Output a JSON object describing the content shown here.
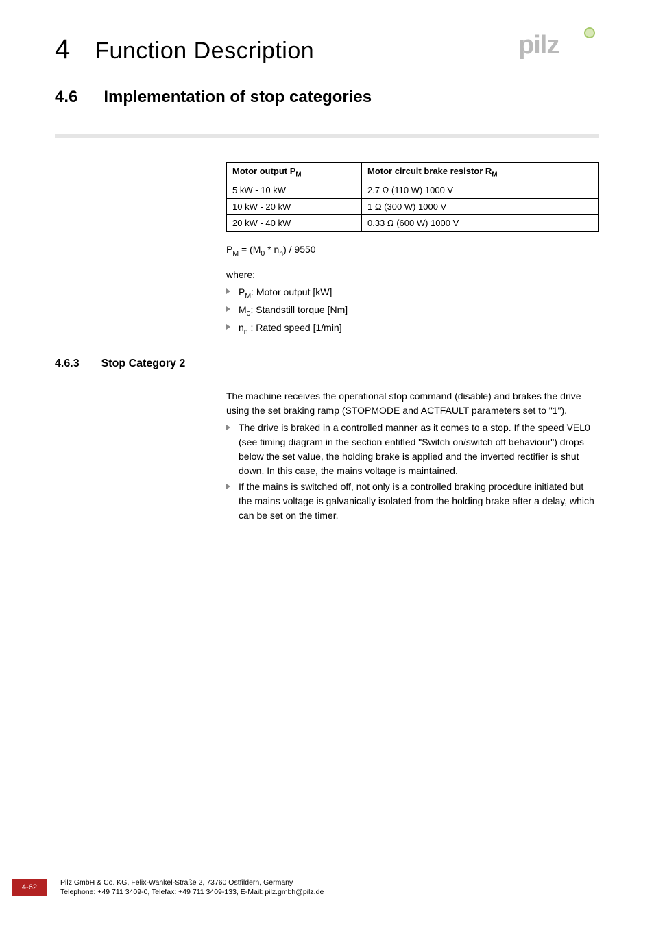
{
  "chapter": {
    "number": "4",
    "title": "Function Description"
  },
  "section": {
    "number": "4.6",
    "title": "Implementation of stop categories"
  },
  "logo": {
    "text": "pilz",
    "text_color": "#b9b9b9",
    "dot_fill": "#d9e8b8",
    "dot_stroke": "#a5c96a"
  },
  "table": {
    "columns": [
      {
        "header_html": "Motor output P<sub>M</sub>"
      },
      {
        "header_html": "Motor circuit brake resistor R<sub>M</sub>"
      }
    ],
    "rows": [
      [
        "5 kW - 10 kW",
        "2.7 Ω (110 W) 1000 V"
      ],
      [
        "10 kW - 20 kW",
        "1 Ω (300 W) 1000 V"
      ],
      [
        "20 kW - 40 kW",
        "0.33 Ω (600 W) 1000 V"
      ]
    ],
    "border_color": "#000000",
    "font_size": 13
  },
  "formula_html": "P<sub>M</sub> = (M<sub>0</sub> * n<sub>n</sub>) / 9550",
  "where_label": "where:",
  "where_items_html": [
    "P<sub>M</sub>: Motor output [kW]",
    "M<sub>0</sub>: Standstill torque [Nm]",
    "n<sub>n</sub> : Rated speed [1/min]"
  ],
  "subsection": {
    "number": "4.6.3",
    "title": "Stop Category 2"
  },
  "body_intro": "The machine receives the operational stop command (disable) and brakes the drive using the set braking ramp (STOPMODE and ACTFAULT parameters set to \"1\").",
  "body_bullets": [
    "The drive is braked in a controlled manner as it comes to a stop. If the speed VEL0 (see timing diagram in the section entitled \"Switch on/switch off behaviour\") drops below the set value, the holding brake is applied and the inverted rectifier is shut down. In this case, the mains voltage is maintained.",
    "If the mains is switched off, not only is a controlled braking procedure initiated but the mains voltage is galvanically isolated from the holding brake after a delay, which can be set on the timer."
  ],
  "footer": {
    "page": "4-62",
    "line1": "Pilz GmbH & Co. KG, Felix-Wankel-Straße 2, 73760 Ostfildern, Germany",
    "line2": "Telephone: +49 711 3409-0, Telefax: +49 711 3409-133, E-Mail: pilz.gmbh@pilz.de",
    "badge_bg": "#b22222",
    "badge_color": "#ffffff"
  },
  "colors": {
    "divider": "#e5e5e5",
    "bullet_arrow": "#888888",
    "text": "#000000",
    "background": "#ffffff"
  }
}
